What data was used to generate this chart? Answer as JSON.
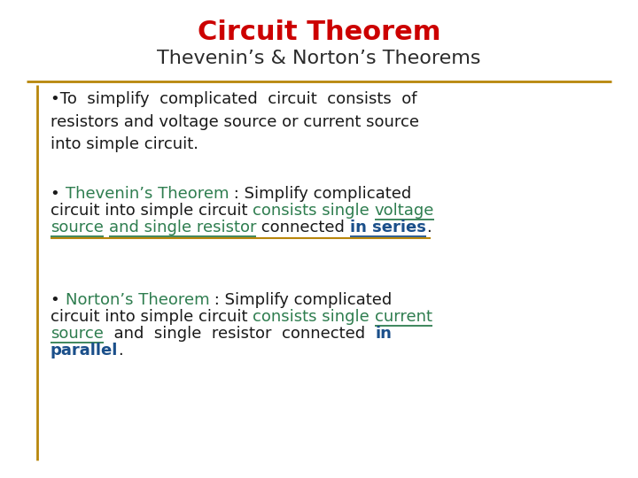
{
  "title": "Circuit Theorem",
  "title_color": "#CC0000",
  "subtitle": "Thevenin’s & Norton’s Theorems",
  "subtitle_color": "#2B2B2B",
  "bg_color": "#FFFFFF",
  "gold_color": "#B8860B",
  "body_color": "#1A1A1A",
  "green_color": "#2E7D4F",
  "blue_color": "#1A4F8A",
  "title_fontsize": 22,
  "subtitle_fontsize": 16,
  "body_fontsize": 13.0
}
